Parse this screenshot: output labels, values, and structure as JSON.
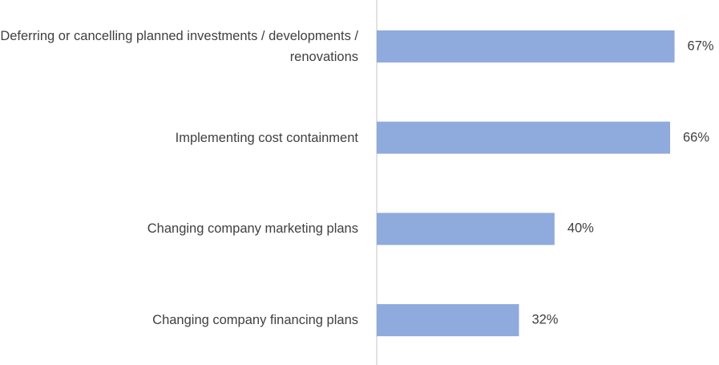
{
  "chart_data": {
    "type": "bar",
    "orientation": "horizontal",
    "categories": [
      "Deferring or cancelling planned investments / developments / renovations",
      "Implementing cost containment",
      "Changing company marketing plans",
      "Changing company financing plans"
    ],
    "values": [
      67,
      66,
      40,
      32
    ],
    "value_labels": [
      "67%",
      "66%",
      "40%",
      "32%"
    ],
    "color": "#8faadc",
    "xlim": [
      0,
      77
    ]
  }
}
